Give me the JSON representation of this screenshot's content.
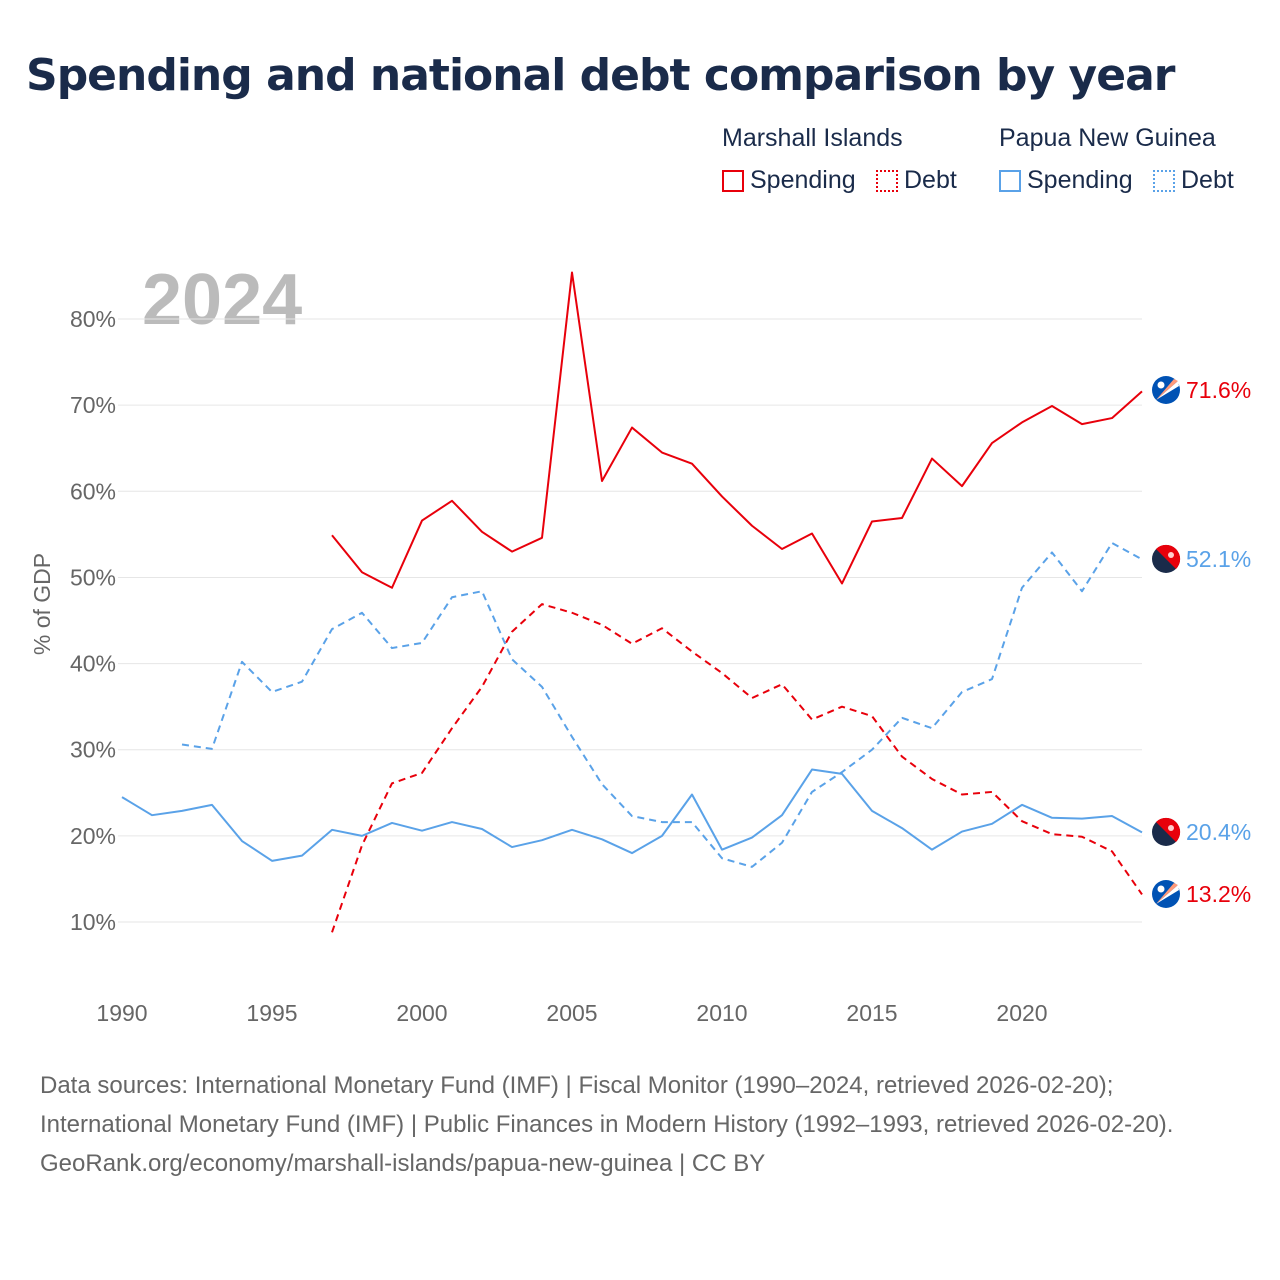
{
  "title": "Spending and national debt comparison by year",
  "legend": {
    "groups": [
      {
        "name": "Marshall Islands",
        "items": [
          {
            "label": "Spending",
            "style": "solid",
            "color": "#e8000b"
          },
          {
            "label": "Debt",
            "style": "dotted",
            "color": "#e8000b"
          }
        ]
      },
      {
        "name": "Papua New Guinea",
        "items": [
          {
            "label": "Spending",
            "style": "solid",
            "color": "#5aa2e8"
          },
          {
            "label": "Debt",
            "style": "dotted",
            "color": "#5aa2e8"
          }
        ]
      }
    ]
  },
  "year_label": "2024",
  "footer": {
    "line1": "Data sources: International Monetary Fund (IMF) | Fiscal Monitor (1990–2024, retrieved 2026-02-20); International Monetary Fund (IMF) | Public Finances in Modern History (1992–1993, retrieved 2026-02-20).",
    "line2": "GeoRank.org/economy/marshall-islands/papua-new-guinea | CC BY"
  },
  "chart_data": {
    "type": "line",
    "title": "Spending and national debt comparison by year",
    "ylabel": "% of GDP",
    "xlabel": "",
    "xlim": [
      1990,
      2024
    ],
    "ylim": [
      10,
      80
    ],
    "xticks": [
      "1990",
      "1995",
      "2000",
      "2005",
      "2010",
      "2015",
      "2020"
    ],
    "yticks": [
      "10%",
      "20%",
      "30%",
      "40%",
      "50%",
      "60%",
      "70%",
      "80%"
    ],
    "grid": true,
    "series": [
      {
        "name": "Marshall Islands Spending",
        "color": "#e8000b",
        "dash": false,
        "start": 1997,
        "end_label": "71.6%",
        "flag": "mh",
        "values": [
          54.9,
          50.6,
          48.8,
          56.6,
          58.9,
          55.3,
          53.0,
          54.6,
          85.4,
          61.2,
          67.4,
          64.5,
          63.2,
          59.4,
          56.0,
          53.3,
          55.1,
          49.3,
          56.5,
          56.9,
          63.8,
          60.6,
          65.6,
          68.0,
          69.9,
          67.8,
          68.5,
          71.6
        ]
      },
      {
        "name": "Marshall Islands Debt",
        "color": "#e8000b",
        "dash": true,
        "start": 1997,
        "end_label": "13.2%",
        "flag": "mh",
        "values": [
          8.8,
          18.9,
          26.1,
          27.3,
          32.5,
          37.3,
          43.7,
          46.9,
          45.9,
          44.5,
          42.3,
          44.1,
          41.4,
          38.9,
          36.0,
          37.6,
          33.5,
          35.0,
          33.9,
          29.2,
          26.6,
          24.8,
          25.1,
          21.7,
          20.2,
          19.9,
          18.2,
          13.2
        ]
      },
      {
        "name": "Papua New Guinea Spending",
        "color": "#5aa2e8",
        "dash": false,
        "start": 1990,
        "end_label": "20.4%",
        "flag": "pg",
        "values": [
          24.5,
          22.4,
          22.9,
          23.6,
          19.4,
          17.1,
          17.7,
          20.7,
          20.0,
          21.5,
          20.6,
          21.6,
          20.8,
          18.7,
          19.5,
          20.7,
          19.6,
          18.0,
          20.0,
          24.8,
          18.4,
          19.8,
          22.4,
          27.7,
          27.2,
          22.9,
          20.9,
          18.4,
          20.5,
          21.4,
          23.6,
          22.1,
          22.0,
          22.3,
          20.4
        ]
      },
      {
        "name": "Papua New Guinea Debt",
        "color": "#5aa2e8",
        "dash": true,
        "start": 1992,
        "end_label": "52.1%",
        "flag": "pg",
        "values": [
          30.6,
          30.1,
          40.2,
          36.7,
          37.9,
          44.0,
          45.9,
          41.8,
          42.4,
          47.7,
          48.4,
          40.5,
          37.3,
          31.5,
          26.0,
          22.3,
          21.6,
          21.6,
          17.4,
          16.4,
          19.2,
          25.1,
          27.4,
          30.0,
          33.7,
          32.5,
          36.7,
          38.2,
          48.8,
          52.9,
          48.4,
          54.0,
          52.1
        ]
      }
    ]
  }
}
